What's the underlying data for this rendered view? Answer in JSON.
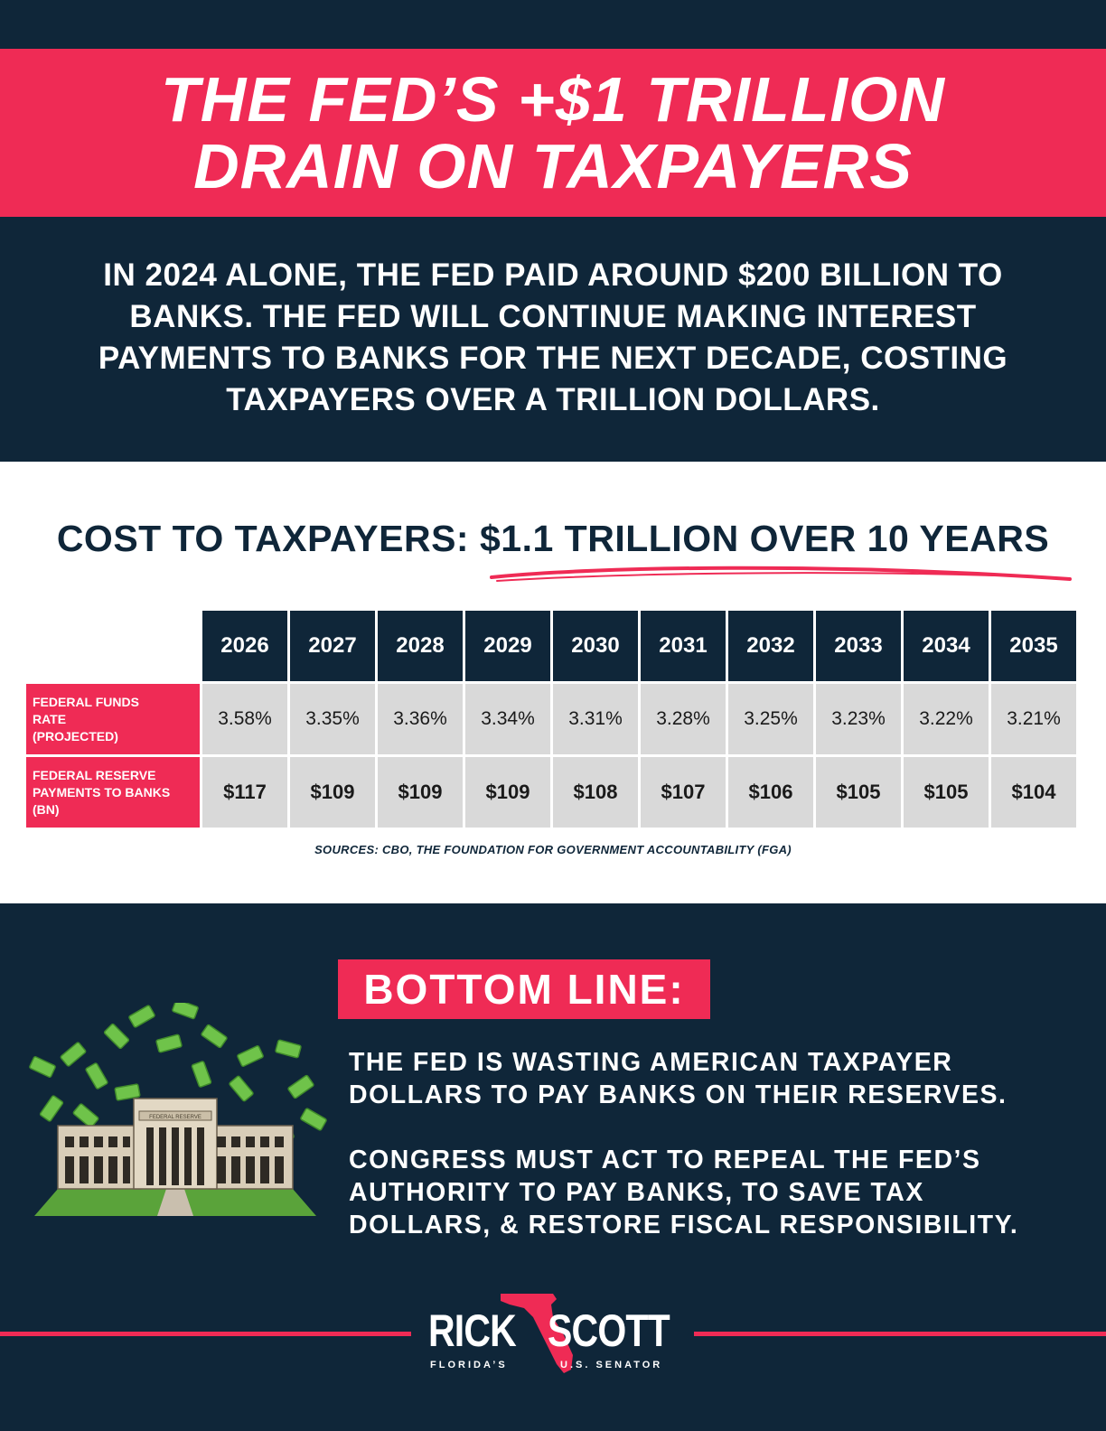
{
  "title": {
    "line1": "THE FED’S +$1 TRILLION",
    "line2": "DRAIN ON TAXPAYERS"
  },
  "intro": {
    "line1": "IN 2024 ALONE, THE FED PAID AROUND $200 BILLION TO",
    "line2": "BANKS. THE FED WILL CONTINUE MAKING INTEREST",
    "line3": "PAYMENTS TO BANKS FOR THE NEXT DECADE, COSTING",
    "line4": "TAXPAYERS OVER A TRILLION DOLLARS."
  },
  "cost_heading": "COST TO TAXPAYERS: $1.1 TRILLION OVER 10 YEARS",
  "table": {
    "years": [
      "2026",
      "2027",
      "2028",
      "2029",
      "2030",
      "2031",
      "2032",
      "2033",
      "2034",
      "2035"
    ],
    "rate_label": {
      "line1": "FEDERAL FUNDS",
      "line2": "RATE",
      "line3": "(PROJECTED)"
    },
    "rates": [
      "3.58%",
      "3.35%",
      "3.36%",
      "3.34%",
      "3.31%",
      "3.28%",
      "3.25%",
      "3.23%",
      "3.22%",
      "3.21%"
    ],
    "payments_label": {
      "line1": "FEDERAL RESERVE",
      "line2": "PAYMENTS TO BANKS",
      "line3": "(BN)"
    },
    "payments": [
      "$117",
      "$109",
      "$109",
      "$109",
      "$108",
      "$107",
      "$106",
      "$105",
      "$105",
      "$104"
    ]
  },
  "sources": "SOURCES: CBO, THE FOUNDATION FOR GOVERNMENT ACCOUNTABILITY (FGA)",
  "bottom_line": {
    "badge": "BOTTOM LINE:",
    "para1": {
      "line1": "THE FED IS WASTING AMERICAN TAXPAYER",
      "line2": "DOLLARS TO PAY BANKS ON THEIR RESERVES."
    },
    "para2": {
      "line1": "CONGRESS MUST ACT TO REPEAL THE FED’S",
      "line2": "AUTHORITY TO PAY BANKS, TO SAVE TAX",
      "line3": "DOLLARS, & RESTORE FISCAL RESPONSIBILITY."
    }
  },
  "illustration": {
    "building_sign": "FEDERAL RESERVE",
    "icon": "federal-reserve-building-with-flying-money"
  },
  "logo": {
    "first_name": "RICK",
    "last_name": "SCOTT",
    "sub_left": "FLORIDA’S",
    "sub_right": "U.S. SENATOR"
  },
  "colors": {
    "navy": "#0f2639",
    "accent_red": "#ef2b55",
    "cell_gray": "#d9d9d9",
    "white": "#ffffff"
  }
}
